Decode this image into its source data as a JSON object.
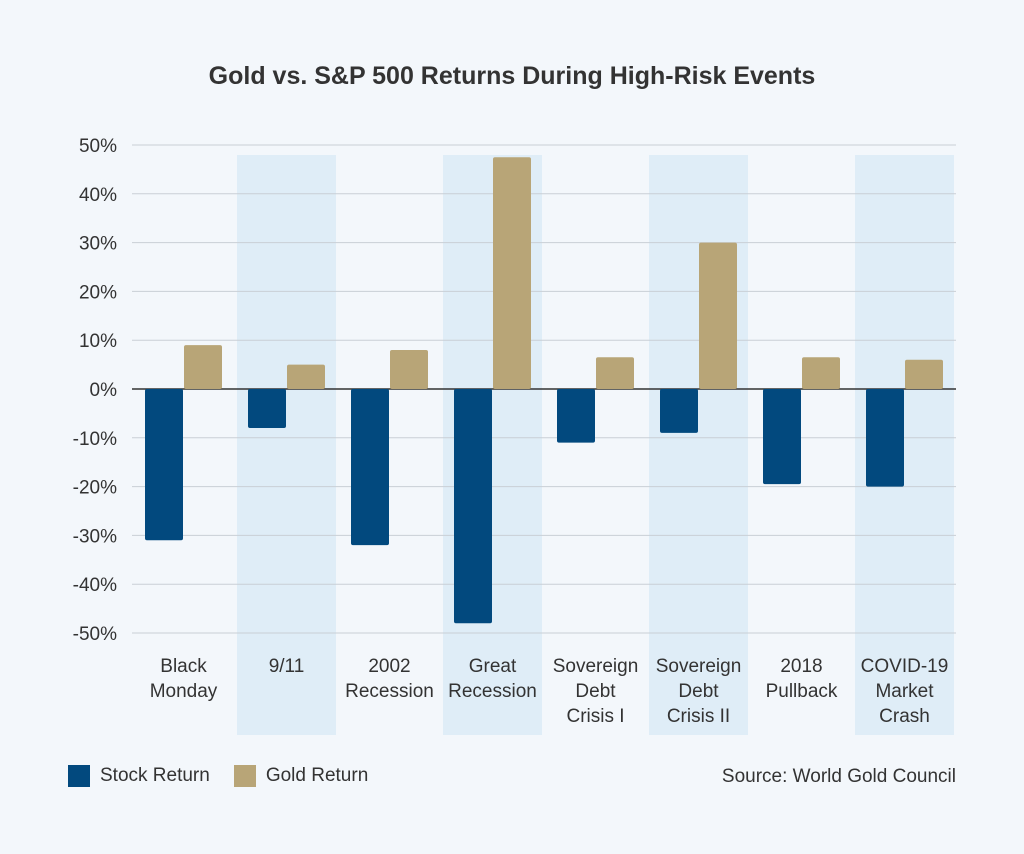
{
  "chart_data": {
    "type": "bar",
    "title": "Gold vs. S&P 500 Returns During High-Risk Events",
    "categories": [
      [
        "Black",
        "Monday"
      ],
      [
        "9/11"
      ],
      [
        "2002",
        "Recession"
      ],
      [
        "Great",
        "Recession"
      ],
      [
        "Sovereign",
        "Debt",
        "Crisis I"
      ],
      [
        "Sovereign",
        "Debt",
        "Crisis II"
      ],
      [
        "2018",
        "Pullback"
      ],
      [
        "COVID-19",
        "Market",
        "Crash"
      ]
    ],
    "series": [
      {
        "name": "Stock Return",
        "color": "#02497e",
        "values": [
          -31,
          -8,
          -32,
          -48,
          -11,
          -9,
          -19.5,
          -20
        ]
      },
      {
        "name": "Gold Return",
        "color": "#b8a577",
        "values": [
          9,
          5,
          8,
          47.5,
          6.5,
          30,
          6.5,
          6
        ]
      }
    ],
    "ylim": [
      -50,
      50
    ],
    "yticks": [
      50,
      40,
      30,
      20,
      10,
      0,
      -10,
      -20,
      -30,
      -40,
      -50
    ],
    "ytick_labels": [
      "50%",
      "40%",
      "30%",
      "20%",
      "10%",
      "0%",
      "-10%",
      "-20%",
      "-30%",
      "-40%",
      "-50%"
    ],
    "grid": true,
    "legend_position": "bottom-left",
    "alternating_band_color": "#d8e9f6",
    "source": "Source: World Gold Council"
  }
}
